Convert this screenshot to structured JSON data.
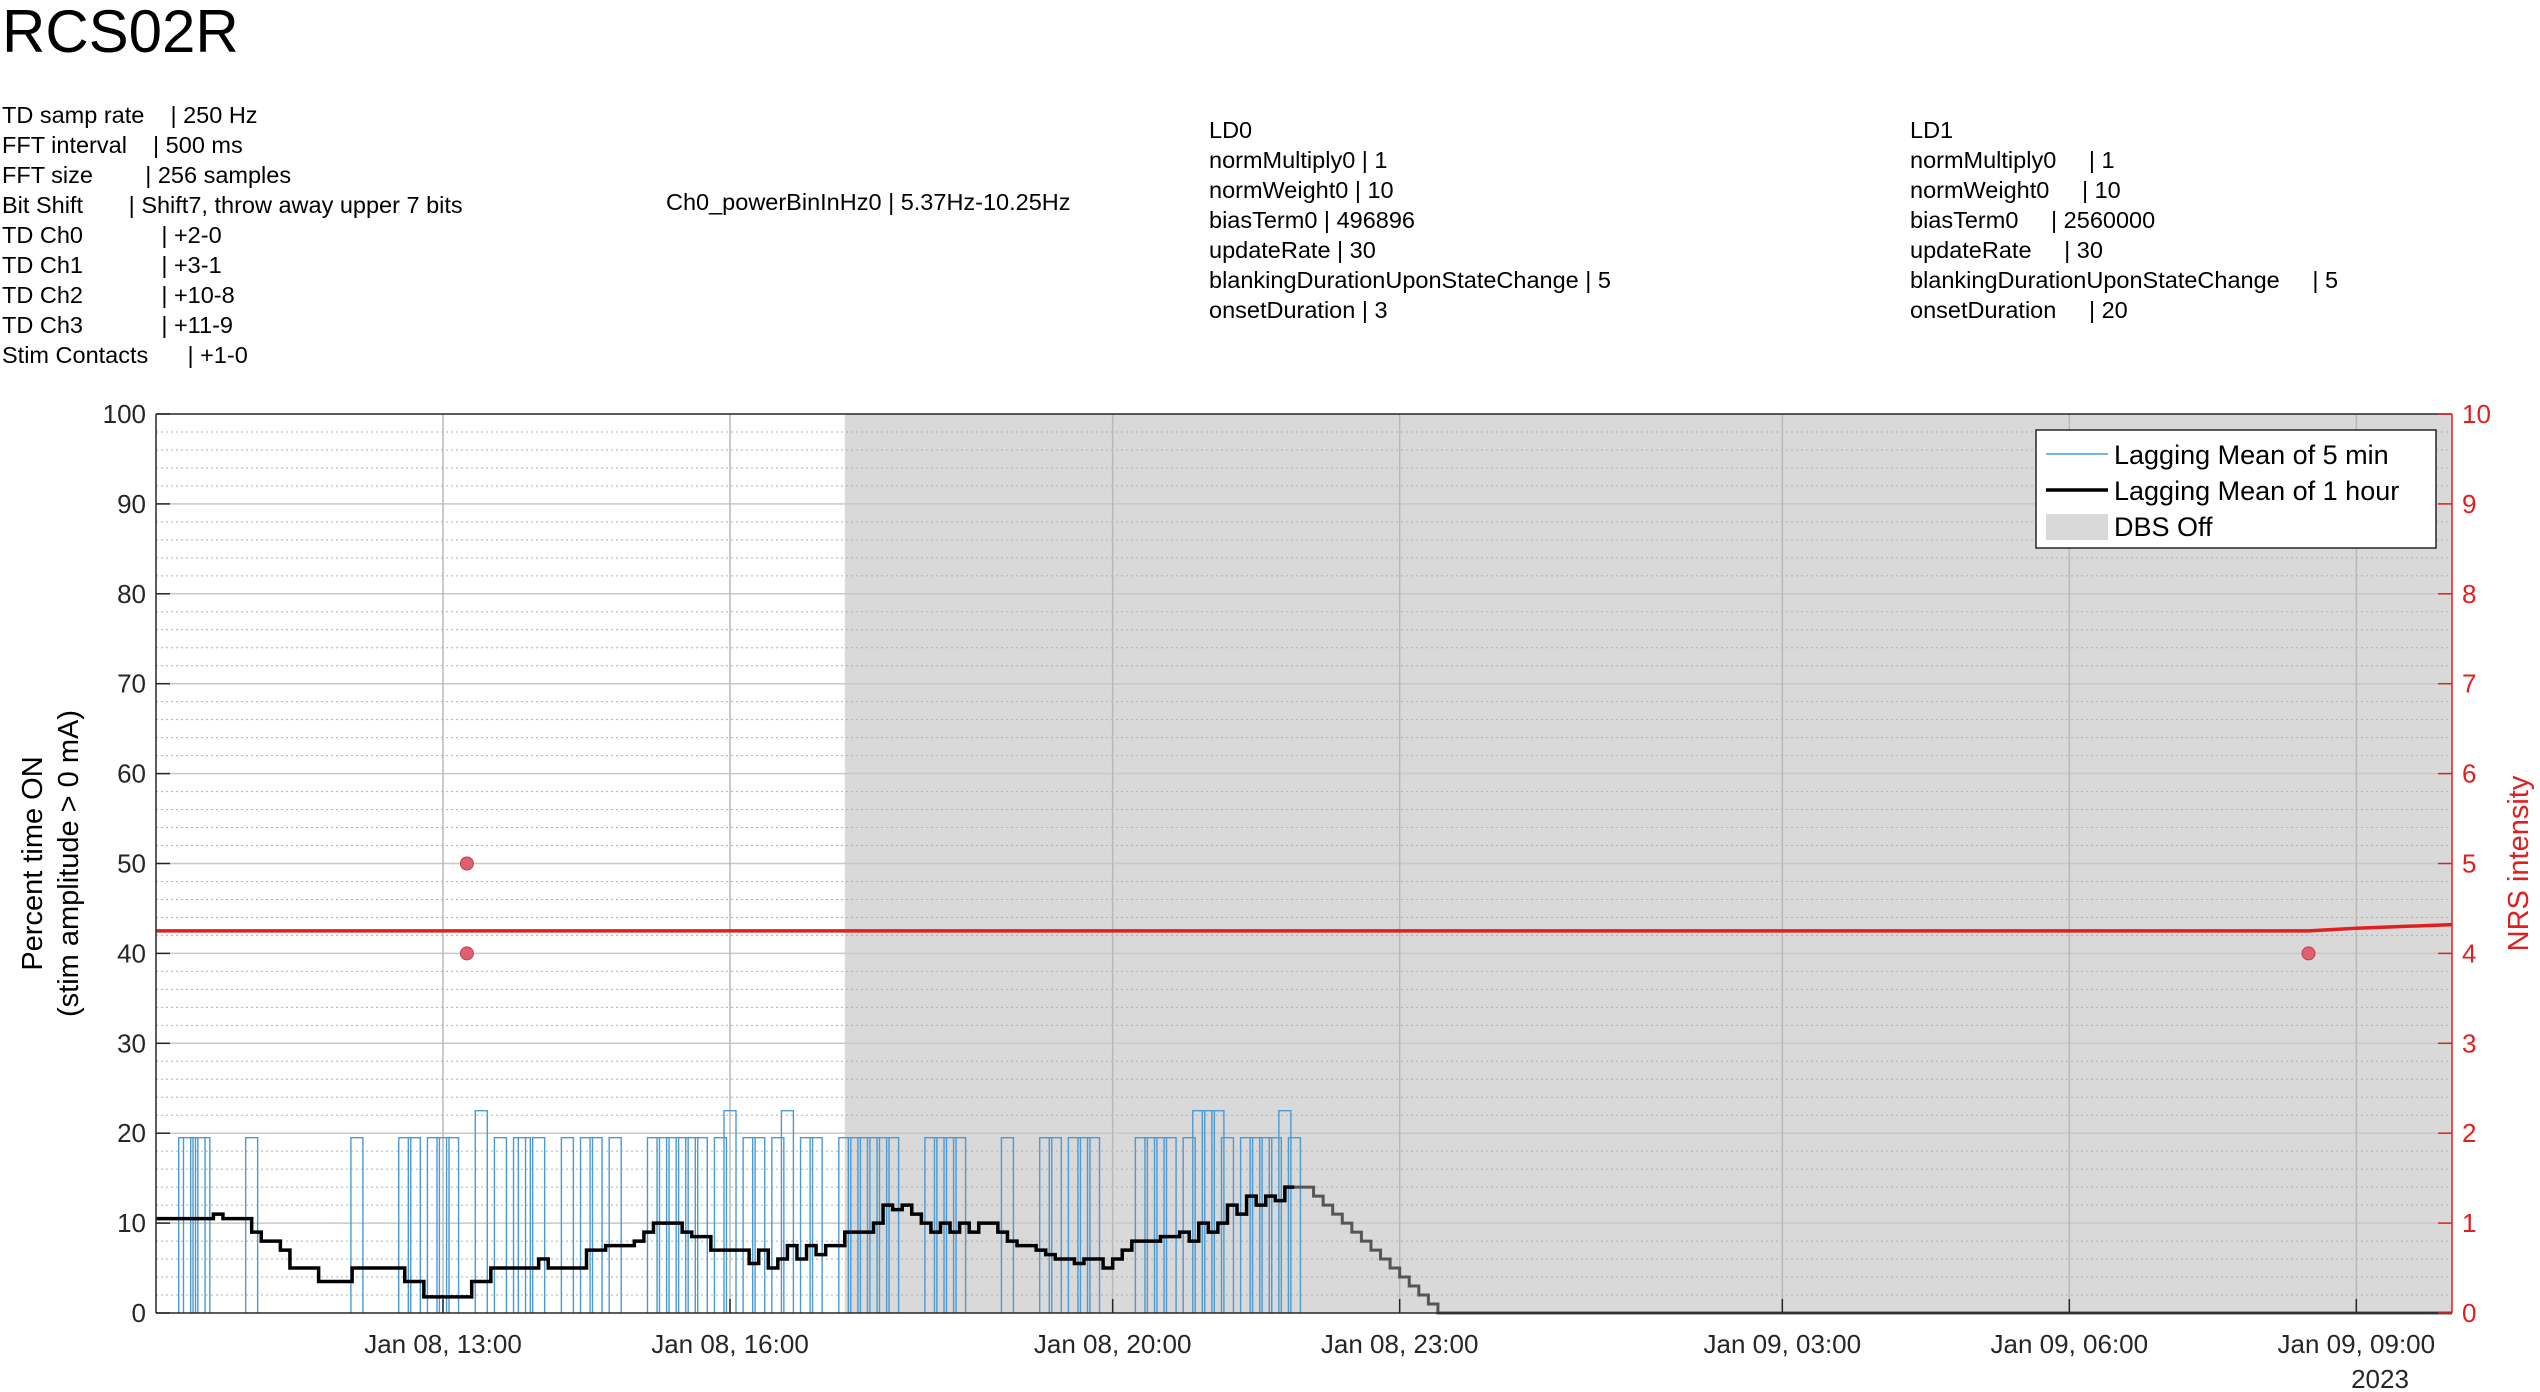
{
  "title": "RCS02R",
  "settings_td": [
    "TD samp rate    | 250 Hz",
    "FFT interval    | 500 ms",
    "FFT size        | 256 samples",
    "Bit Shift       | Shift7, throw away upper 7 bits",
    "TD Ch0            | +2-0",
    "TD Ch1            | +3-1",
    "TD Ch2            | +10-8",
    "TD Ch3            | +11-9",
    "Stim Contacts      | +1-0"
  ],
  "power_bin": "Ch0_powerBinInHz0 | 5.37Hz-10.25Hz",
  "ld0": [
    "LD0",
    "normMultiply0 | 1",
    "normWeight0 | 10",
    "biasTerm0 | 496896",
    "updateRate | 30",
    "blankingDurationUponStateChange | 5",
    "onsetDuration | 3"
  ],
  "ld1": [
    "LD1",
    "normMultiply0     | 1",
    "normWeight0     | 10",
    "biasTerm0     | 2560000",
    "updateRate     | 30",
    "blankingDurationUponStateChange     | 5",
    "onsetDuration     | 20"
  ],
  "chart_data": {
    "type": "line",
    "ylabel_left": [
      "Percent time ON",
      "(stim amplitude > 0 mA)"
    ],
    "ylabel_right": "NRS intensity",
    "ylim_left": [
      0,
      100
    ],
    "ylim_right": [
      0,
      10
    ],
    "yticks_left": [
      "0",
      "10",
      "20",
      "30",
      "40",
      "50",
      "60",
      "70",
      "80",
      "90",
      "100"
    ],
    "yticks_right": [
      "0",
      "1",
      "2",
      "3",
      "4",
      "5",
      "6",
      "7",
      "8",
      "9",
      "10"
    ],
    "x_unit": "hours since Jan 08, 00:00",
    "xlim": [
      10.0,
      34.0
    ],
    "xticks": [
      {
        "x": 13,
        "label": "Jan 08, 13:00"
      },
      {
        "x": 16,
        "label": "Jan 08, 16:00"
      },
      {
        "x": 20,
        "label": "Jan 08, 20:00"
      },
      {
        "x": 23,
        "label": "Jan 08, 23:00"
      },
      {
        "x": 27,
        "label": "Jan 09, 03:00"
      },
      {
        "x": 30,
        "label": "Jan 09, 06:00"
      },
      {
        "x": 33,
        "label": "Jan 09, 09:00"
      }
    ],
    "year_label": "2023",
    "dbs_off": [
      17.2,
      34.0
    ],
    "legend": [
      "Lagging Mean of 5 min",
      "Lagging Mean of 1 hour",
      "DBS Off"
    ],
    "colors": {
      "mean5": "#4a9ad6",
      "mean1h": "#000000",
      "nrs": "#e02020",
      "nrs_dot": "#e06070",
      "dbs_off": "#d9d9d9",
      "after_off": "#555555"
    },
    "mean_1h": [
      [
        10.0,
        10.5
      ],
      [
        10.5,
        10.5
      ],
      [
        10.6,
        11
      ],
      [
        10.7,
        10.5
      ],
      [
        10.9,
        10.5
      ],
      [
        11.0,
        9
      ],
      [
        11.1,
        8
      ],
      [
        11.3,
        7
      ],
      [
        11.4,
        5
      ],
      [
        11.6,
        5
      ],
      [
        11.7,
        3.5
      ],
      [
        12.0,
        3.5
      ],
      [
        12.05,
        5
      ],
      [
        12.3,
        5
      ],
      [
        12.5,
        5
      ],
      [
        12.6,
        3.5
      ],
      [
        12.8,
        1.8
      ],
      [
        13.0,
        1.8
      ],
      [
        13.1,
        1.8
      ],
      [
        13.3,
        3.5
      ],
      [
        13.5,
        5
      ],
      [
        13.7,
        5
      ],
      [
        13.9,
        5
      ],
      [
        14.0,
        6
      ],
      [
        14.1,
        5
      ],
      [
        14.3,
        5
      ],
      [
        14.5,
        7
      ],
      [
        14.7,
        7.5
      ],
      [
        14.9,
        7.5
      ],
      [
        15.0,
        8
      ],
      [
        15.1,
        9
      ],
      [
        15.2,
        10
      ],
      [
        15.3,
        10
      ],
      [
        15.5,
        9
      ],
      [
        15.6,
        8.5
      ],
      [
        15.7,
        8.5
      ],
      [
        15.8,
        7
      ],
      [
        16.0,
        7
      ],
      [
        16.1,
        7
      ],
      [
        16.2,
        5.5
      ],
      [
        16.3,
        7
      ],
      [
        16.4,
        5
      ],
      [
        16.5,
        6
      ],
      [
        16.6,
        7.5
      ],
      [
        16.7,
        6
      ],
      [
        16.8,
        7.5
      ],
      [
        16.9,
        6.5
      ],
      [
        17.0,
        7.5
      ],
      [
        17.1,
        7.5
      ],
      [
        17.2,
        9
      ],
      [
        17.3,
        9
      ],
      [
        17.5,
        10
      ],
      [
        17.6,
        12
      ],
      [
        17.7,
        11.5
      ],
      [
        17.8,
        12
      ],
      [
        17.9,
        11
      ],
      [
        18.0,
        10
      ],
      [
        18.1,
        9
      ],
      [
        18.2,
        10
      ],
      [
        18.3,
        9
      ],
      [
        18.4,
        10
      ],
      [
        18.5,
        9
      ],
      [
        18.6,
        10
      ],
      [
        18.7,
        10
      ],
      [
        18.8,
        9
      ],
      [
        18.9,
        8
      ],
      [
        19.0,
        7.5
      ],
      [
        19.1,
        7.5
      ],
      [
        19.2,
        7
      ],
      [
        19.3,
        6.5
      ],
      [
        19.4,
        6
      ],
      [
        19.5,
        6
      ],
      [
        19.6,
        5.5
      ],
      [
        19.7,
        6
      ],
      [
        19.8,
        6
      ],
      [
        19.9,
        5
      ],
      [
        20.0,
        6
      ],
      [
        20.1,
        7
      ],
      [
        20.2,
        8
      ],
      [
        20.3,
        8
      ],
      [
        20.5,
        8.5
      ],
      [
        20.7,
        9
      ],
      [
        20.8,
        8
      ],
      [
        20.9,
        10
      ],
      [
        21.0,
        9
      ],
      [
        21.1,
        10
      ],
      [
        21.2,
        12
      ],
      [
        21.3,
        11
      ],
      [
        21.4,
        13
      ],
      [
        21.5,
        12
      ],
      [
        21.6,
        13
      ],
      [
        21.7,
        12.5
      ],
      [
        21.8,
        14
      ],
      [
        21.9,
        14
      ]
    ],
    "mean_1h_after_off": [
      [
        21.9,
        14
      ],
      [
        22.0,
        14
      ],
      [
        22.1,
        13
      ],
      [
        22.2,
        12
      ],
      [
        22.3,
        11
      ],
      [
        22.4,
        10
      ],
      [
        22.5,
        9
      ],
      [
        22.6,
        8
      ],
      [
        22.7,
        7
      ],
      [
        22.8,
        6
      ],
      [
        22.9,
        5
      ],
      [
        23.0,
        4
      ],
      [
        23.1,
        3
      ],
      [
        23.2,
        2
      ],
      [
        23.3,
        1
      ],
      [
        23.4,
        0
      ],
      [
        34.0,
        0
      ]
    ],
    "mean_5min_spikes": [
      [
        10.3,
        19.5
      ],
      [
        10.35,
        19.5
      ],
      [
        10.45,
        19.5
      ],
      [
        10.5,
        19.5
      ],
      [
        11.0,
        19.5
      ],
      [
        12.1,
        19.5
      ],
      [
        12.6,
        19.5
      ],
      [
        12.7,
        19.5
      ],
      [
        12.9,
        19.5
      ],
      [
        13.0,
        19.5
      ],
      [
        13.1,
        19.5
      ],
      [
        13.4,
        22.5
      ],
      [
        13.6,
        19.5
      ],
      [
        13.8,
        19.5
      ],
      [
        13.85,
        19.5
      ],
      [
        14.0,
        19.5
      ],
      [
        14.3,
        19.5
      ],
      [
        14.5,
        19.5
      ],
      [
        14.6,
        19.5
      ],
      [
        14.8,
        19.5
      ],
      [
        15.2,
        19.5
      ],
      [
        15.3,
        19.5
      ],
      [
        15.4,
        19.5
      ],
      [
        15.5,
        19.5
      ],
      [
        15.6,
        19.5
      ],
      [
        15.7,
        19.5
      ],
      [
        15.9,
        19.5
      ],
      [
        16.0,
        22.5
      ],
      [
        16.2,
        19.5
      ],
      [
        16.3,
        19.5
      ],
      [
        16.5,
        19.5
      ],
      [
        16.6,
        22.5
      ],
      [
        16.8,
        19.5
      ],
      [
        16.9,
        19.5
      ],
      [
        17.2,
        19.5
      ],
      [
        17.3,
        19.5
      ],
      [
        17.4,
        19.5
      ],
      [
        17.5,
        19.5
      ],
      [
        17.6,
        19.5
      ],
      [
        17.7,
        19.5
      ],
      [
        18.1,
        19.5
      ],
      [
        18.2,
        19.5
      ],
      [
        18.3,
        19.5
      ],
      [
        18.4,
        19.5
      ],
      [
        18.9,
        19.5
      ],
      [
        19.3,
        19.5
      ],
      [
        19.4,
        19.5
      ],
      [
        19.6,
        19.5
      ],
      [
        19.7,
        19.5
      ],
      [
        19.8,
        19.5
      ],
      [
        20.3,
        19.5
      ],
      [
        20.4,
        19.5
      ],
      [
        20.5,
        19.5
      ],
      [
        20.6,
        19.5
      ],
      [
        20.8,
        19.5
      ],
      [
        20.9,
        22.5
      ],
      [
        21.0,
        22.5
      ],
      [
        21.1,
        22.5
      ],
      [
        21.2,
        19.5
      ],
      [
        21.4,
        19.5
      ],
      [
        21.5,
        19.5
      ],
      [
        21.6,
        19.5
      ],
      [
        21.7,
        19.5
      ],
      [
        21.8,
        22.5
      ],
      [
        21.9,
        19.5
      ]
    ],
    "nrs_line": [
      [
        10.0,
        4.25
      ],
      [
        32.5,
        4.25
      ],
      [
        33.0,
        4.28
      ],
      [
        34.0,
        4.32
      ]
    ],
    "nrs_points": [
      [
        13.25,
        5.0
      ],
      [
        13.25,
        4.0
      ],
      [
        32.5,
        4.0
      ]
    ]
  }
}
